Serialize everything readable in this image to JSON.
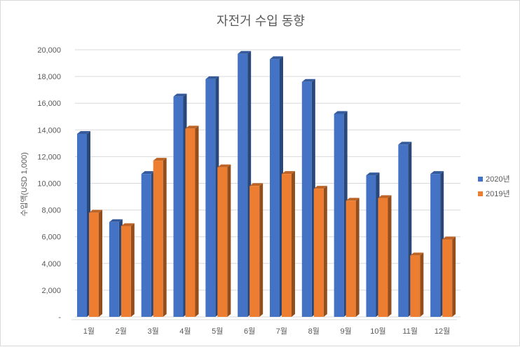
{
  "chart_data": {
    "type": "bar",
    "title": "자전거 수입 동향",
    "ylabel": "수입액(USD 1,000)",
    "xlabel": "",
    "categories": [
      "1월",
      "2월",
      "3월",
      "4월",
      "5월",
      "6월",
      "7월",
      "8월",
      "9월",
      "10월",
      "11월",
      "12월"
    ],
    "series": [
      {
        "name": "2020년",
        "color": "#4472c4",
        "values": [
          13700,
          7100,
          10700,
          16500,
          17800,
          19700,
          19300,
          17600,
          15200,
          10600,
          12900,
          10700
        ]
      },
      {
        "name": "2019년",
        "color": "#ed7d31",
        "values": [
          7800,
          6800,
          11700,
          14100,
          11200,
          9800,
          10700,
          9600,
          8700,
          8900,
          4600,
          5800
        ]
      }
    ],
    "yticks": [
      {
        "value": 0,
        "label": "-"
      },
      {
        "value": 2000,
        "label": "2,000"
      },
      {
        "value": 4000,
        "label": "4,000"
      },
      {
        "value": 6000,
        "label": "6,000"
      },
      {
        "value": 8000,
        "label": "8,000"
      },
      {
        "value": 10000,
        "label": "10,000"
      },
      {
        "value": 12000,
        "label": "12,000"
      },
      {
        "value": 14000,
        "label": "14,000"
      },
      {
        "value": 16000,
        "label": "16,000"
      },
      {
        "value": 18000,
        "label": "18,000"
      },
      {
        "value": 20000,
        "label": "20,000"
      }
    ],
    "ylim": [
      0,
      20000
    ],
    "grid": true,
    "legend": "right"
  }
}
